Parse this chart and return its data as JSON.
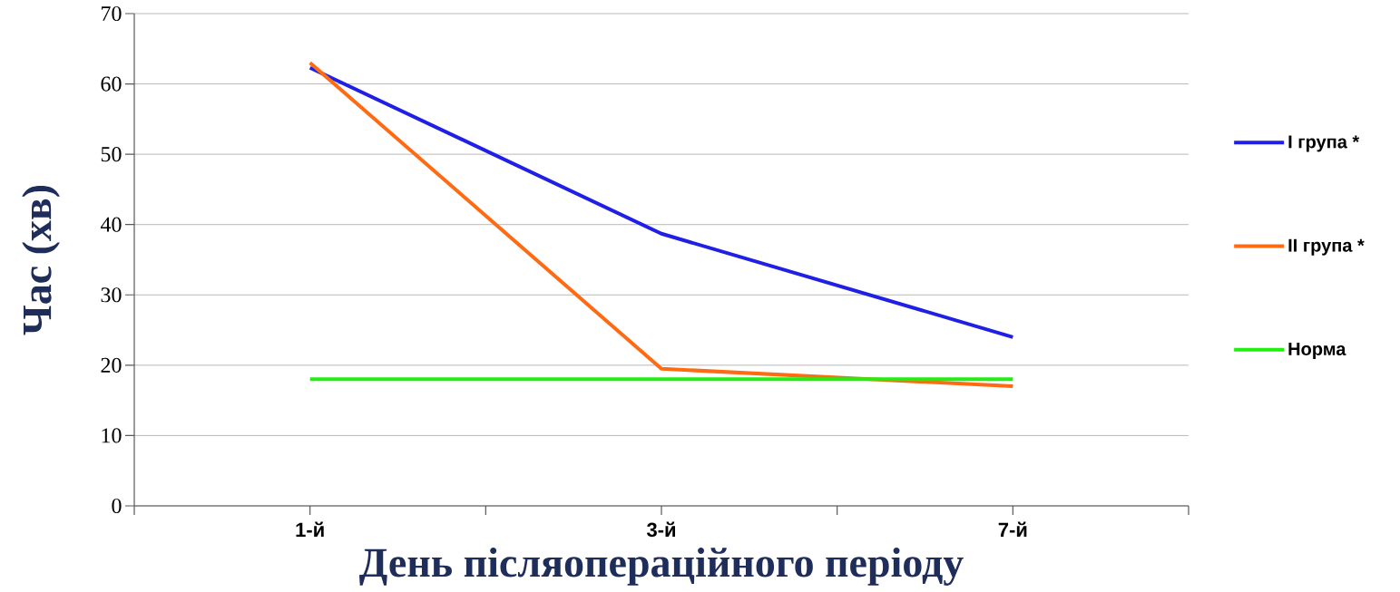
{
  "chart_data": {
    "type": "line",
    "xlabel": "День післяопераційного періоду",
    "ylabel": "Час (хв)",
    "categories": [
      "1-й",
      "3-й",
      "7-й"
    ],
    "series": [
      {
        "name": "I група *",
        "color": "#1f1fe6",
        "values": [
          62.3,
          38.7,
          24
        ]
      },
      {
        "name": "II група *",
        "color": "#ff6a13",
        "values": [
          63,
          19.5,
          17
        ]
      },
      {
        "name": "Норма",
        "color": "#22ee11",
        "values": [
          18,
          18,
          18
        ]
      }
    ],
    "ylim": [
      0,
      70
    ],
    "yticks": [
      0,
      10,
      20,
      30,
      40,
      50,
      60,
      70
    ],
    "grid": "y",
    "legend": "right"
  }
}
